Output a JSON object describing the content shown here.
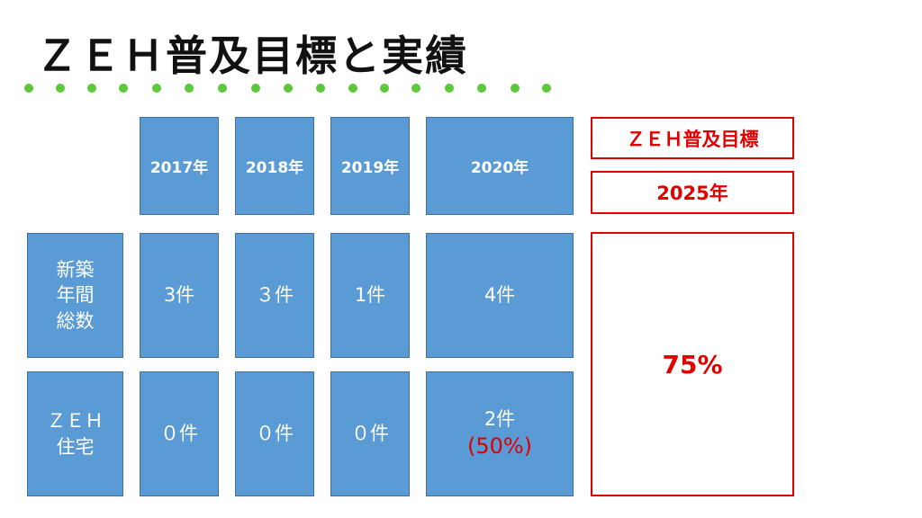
{
  "header": {
    "title": "ＺＥＨ普及目標と実績"
  },
  "table": {
    "headers": [
      "2017年",
      "2018年",
      "2019年",
      "2020年"
    ],
    "rows": [
      {
        "label": [
          "新築",
          "年間",
          "総数"
        ],
        "cells": [
          "3件",
          "３件",
          "1件",
          "4件"
        ]
      },
      {
        "label": [
          "ＺＥＨ",
          "住宅"
        ],
        "cells": [
          "０件",
          "０件",
          "０件",
          "2件"
        ],
        "note": "(50%)"
      }
    ]
  },
  "target": {
    "title": "ＺＥＨ普及目標",
    "year": "2025年",
    "value": "75%"
  }
}
